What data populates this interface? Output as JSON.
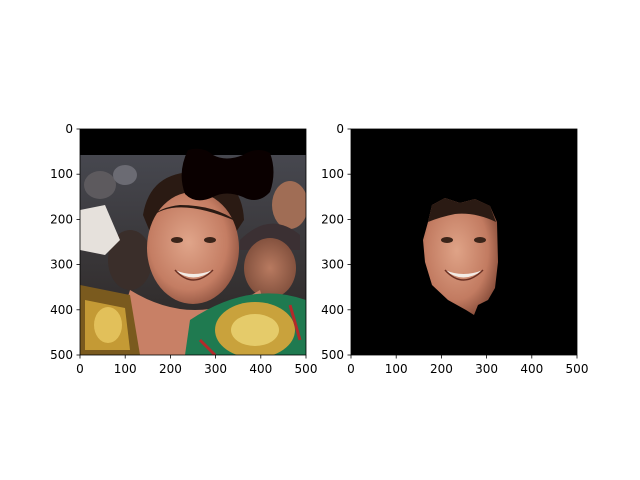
{
  "figure": {
    "background": "#ffffff"
  },
  "chart_data": [
    {
      "type": "image",
      "title": "",
      "xlabel": "",
      "ylabel": "",
      "xlim": [
        0,
        500
      ],
      "ylim": [
        500,
        0
      ],
      "x_ticks": [
        0,
        100,
        200,
        300,
        400,
        500
      ],
      "y_ticks": [
        0,
        100,
        200,
        300,
        400,
        500
      ],
      "content": "photo",
      "frame_color": "#000000"
    },
    {
      "type": "image",
      "title": "",
      "xlabel": "",
      "ylabel": "",
      "xlim": [
        0,
        500
      ],
      "ylim": [
        500,
        0
      ],
      "x_ticks": [
        0,
        100,
        200,
        300,
        400,
        500
      ],
      "y_ticks": [
        0,
        100,
        200,
        300,
        400,
        500
      ],
      "content": "face-mask",
      "background_color": "#000000"
    }
  ]
}
